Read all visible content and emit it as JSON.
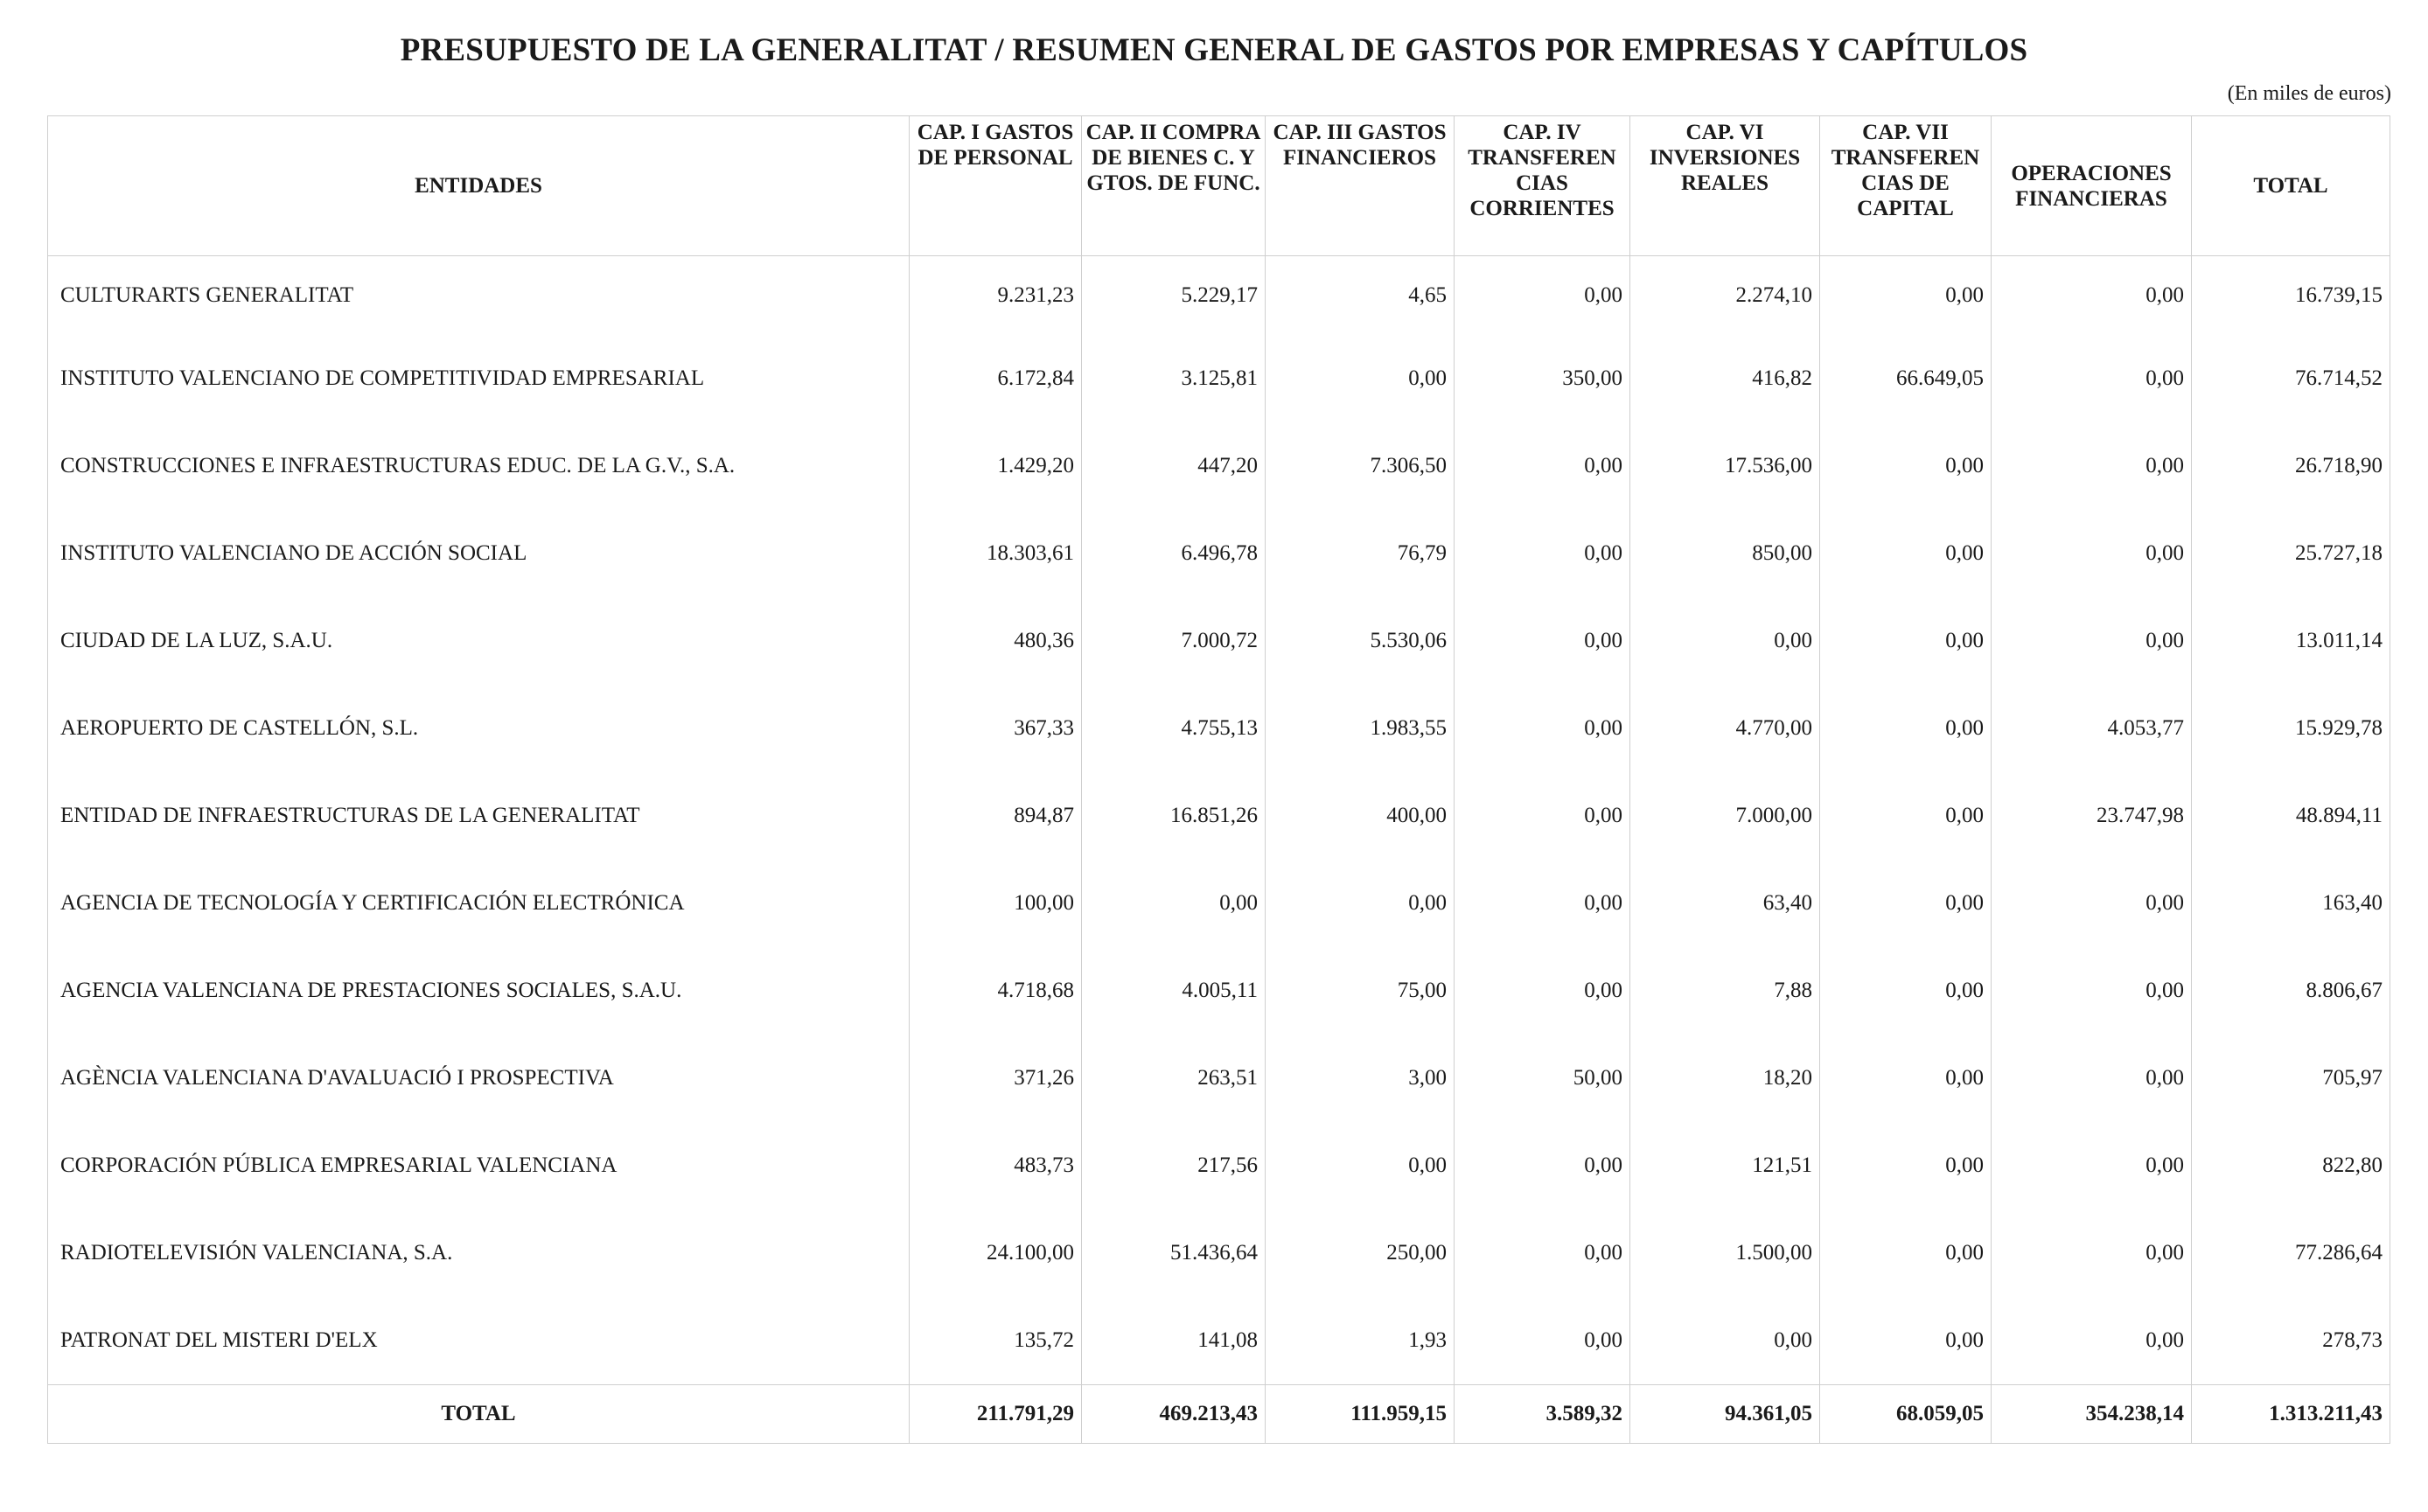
{
  "title": "PRESUPUESTO DE LA GENERALITAT / RESUMEN GENERAL DE GASTOS POR EMPRESAS Y CAPÍTULOS",
  "units_note": "(En miles de euros)",
  "columns": [
    "ENTIDADES",
    "CAP. I GASTOS DE PERSONAL",
    "CAP. II COMPRA DE BIENES C. Y GTOS. DE FUNC.",
    "CAP. III GASTOS FINANCIEROS",
    "CAP. IV TRANSFEREN CIAS CORRIENTES",
    "CAP. VI INVERSIONES REALES",
    "CAP. VII TRANSFEREN CIAS DE CAPITAL",
    "OPERACIONES FINANCIERAS",
    "TOTAL"
  ],
  "rows": [
    {
      "entity": "CULTURARTS GENERALITAT",
      "values": [
        "9.231,23",
        "5.229,17",
        "4,65",
        "0,00",
        "2.274,10",
        "0,00",
        "0,00",
        "16.739,15"
      ]
    },
    {
      "entity": "INSTITUTO VALENCIANO DE COMPETITIVIDAD EMPRESARIAL",
      "values": [
        "6.172,84",
        "3.125,81",
        "0,00",
        "350,00",
        "416,82",
        "66.649,05",
        "0,00",
        "76.714,52"
      ]
    },
    {
      "entity": "CONSTRUCCIONES E INFRAESTRUCTURAS EDUC. DE LA G.V., S.A.",
      "values": [
        "1.429,20",
        "447,20",
        "7.306,50",
        "0,00",
        "17.536,00",
        "0,00",
        "0,00",
        "26.718,90"
      ]
    },
    {
      "entity": "INSTITUTO VALENCIANO DE ACCIÓN SOCIAL",
      "values": [
        "18.303,61",
        "6.496,78",
        "76,79",
        "0,00",
        "850,00",
        "0,00",
        "0,00",
        "25.727,18"
      ]
    },
    {
      "entity": "CIUDAD DE LA LUZ, S.A.U.",
      "values": [
        "480,36",
        "7.000,72",
        "5.530,06",
        "0,00",
        "0,00",
        "0,00",
        "0,00",
        "13.011,14"
      ]
    },
    {
      "entity": "AEROPUERTO DE CASTELLÓN, S.L.",
      "values": [
        "367,33",
        "4.755,13",
        "1.983,55",
        "0,00",
        "4.770,00",
        "0,00",
        "4.053,77",
        "15.929,78"
      ]
    },
    {
      "entity": "ENTIDAD DE INFRAESTRUCTURAS DE LA GENERALITAT",
      "values": [
        "894,87",
        "16.851,26",
        "400,00",
        "0,00",
        "7.000,00",
        "0,00",
        "23.747,98",
        "48.894,11"
      ]
    },
    {
      "entity": "AGENCIA DE TECNOLOGÍA Y CERTIFICACIÓN ELECTRÓNICA",
      "values": [
        "100,00",
        "0,00",
        "0,00",
        "0,00",
        "63,40",
        "0,00",
        "0,00",
        "163,40"
      ]
    },
    {
      "entity": "AGENCIA VALENCIANA DE PRESTACIONES SOCIALES, S.A.U.",
      "values": [
        "4.718,68",
        "4.005,11",
        "75,00",
        "0,00",
        "7,88",
        "0,00",
        "0,00",
        "8.806,67"
      ]
    },
    {
      "entity": "AGÈNCIA VALENCIANA D'AVALUACIÓ I PROSPECTIVA",
      "values": [
        "371,26",
        "263,51",
        "3,00",
        "50,00",
        "18,20",
        "0,00",
        "0,00",
        "705,97"
      ]
    },
    {
      "entity": "CORPORACIÓN PÚBLICA EMPRESARIAL VALENCIANA",
      "values": [
        "483,73",
        "217,56",
        "0,00",
        "0,00",
        "121,51",
        "0,00",
        "0,00",
        "822,80"
      ]
    },
    {
      "entity": "RADIOTELEVISIÓN VALENCIANA, S.A.",
      "values": [
        "24.100,00",
        "51.436,64",
        "250,00",
        "0,00",
        "1.500,00",
        "0,00",
        "0,00",
        "77.286,64"
      ]
    },
    {
      "entity": "PATRONAT DEL MISTERI D'ELX",
      "values": [
        "135,72",
        "141,08",
        "1,93",
        "0,00",
        "0,00",
        "0,00",
        "0,00",
        "278,73"
      ]
    }
  ],
  "total": {
    "label": "TOTAL",
    "values": [
      "211.791,29",
      "469.213,43",
      "111.959,15",
      "3.589,32",
      "94.361,05",
      "68.059,05",
      "354.238,14",
      "1.313.211,43"
    ]
  }
}
